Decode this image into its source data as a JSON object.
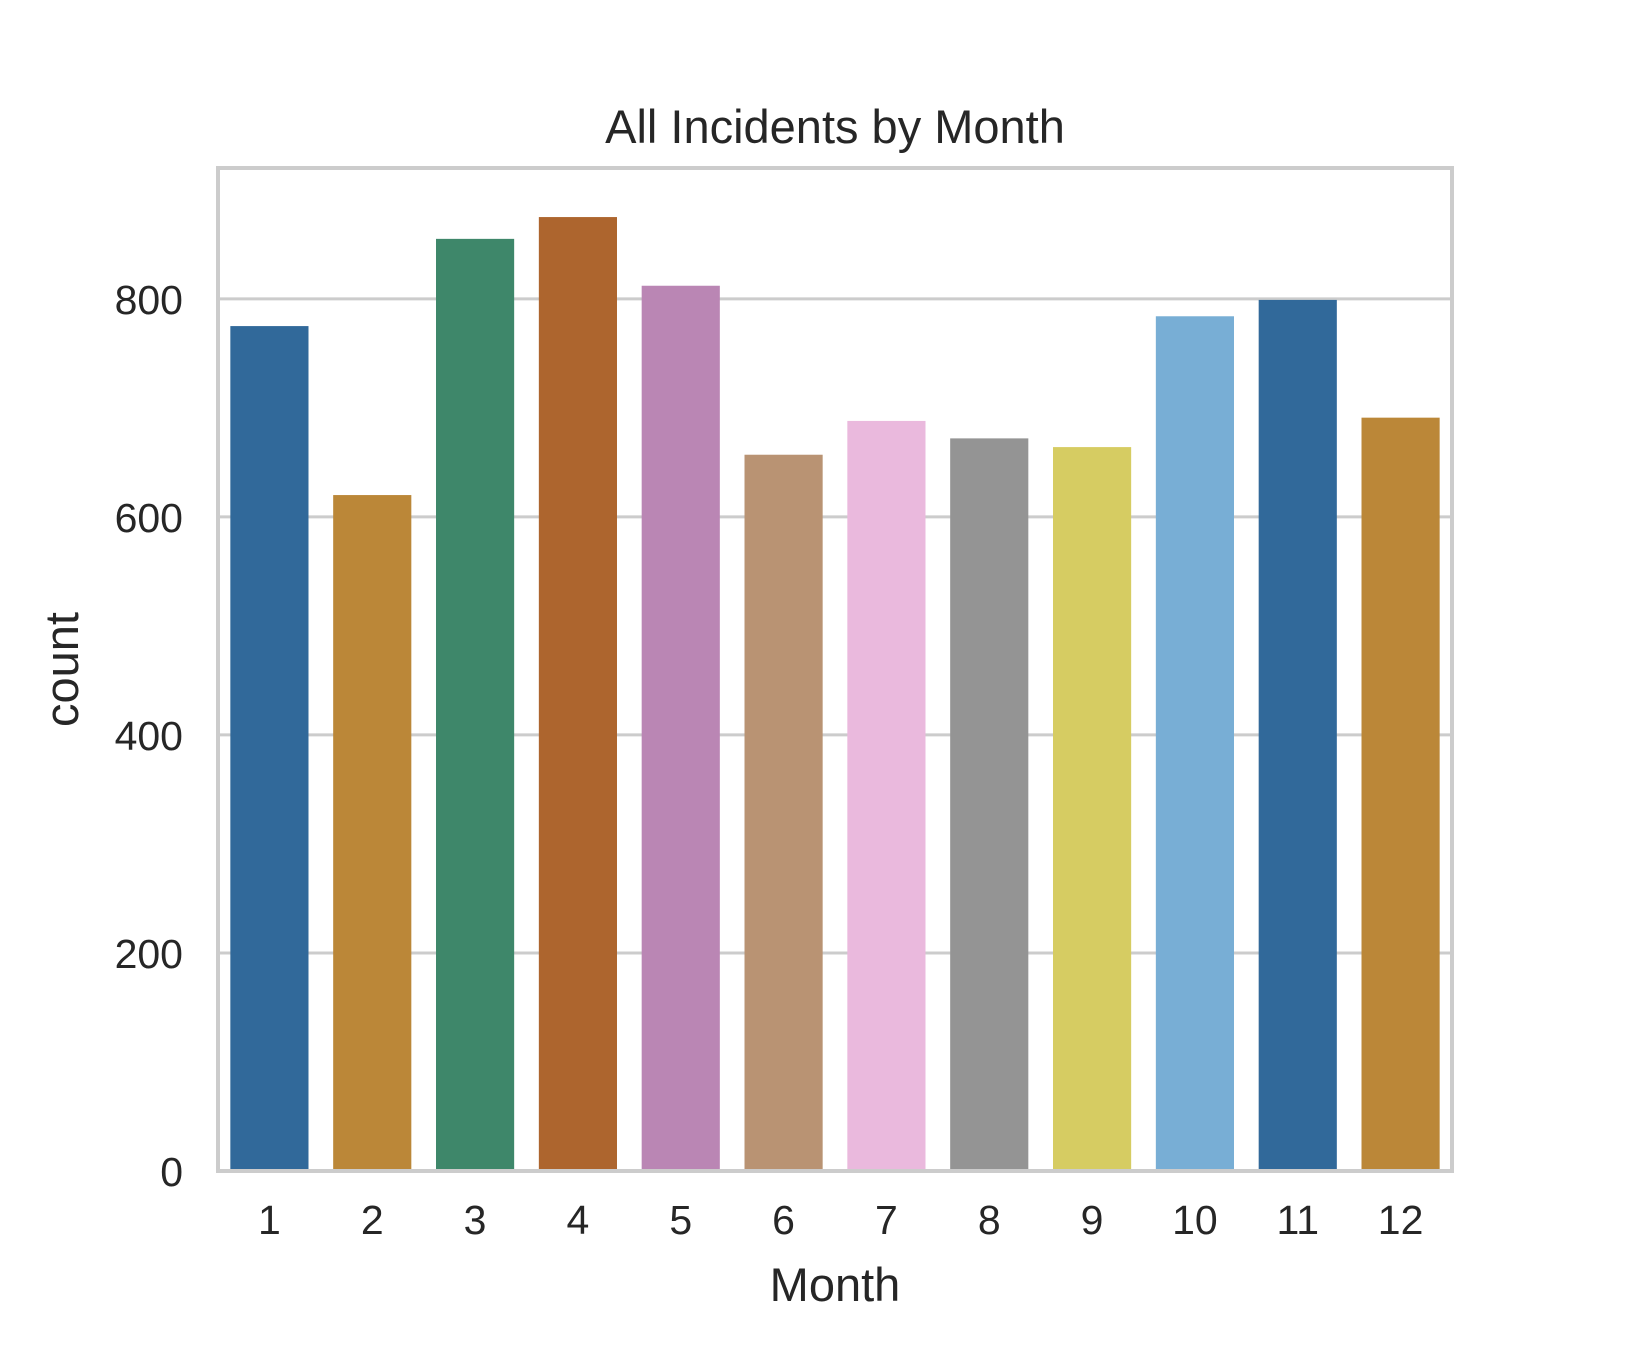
{
  "chart_data": {
    "type": "bar",
    "title": "All Incidents by Month",
    "xlabel": "Month",
    "ylabel": "count",
    "categories": [
      "1",
      "2",
      "3",
      "4",
      "5",
      "6",
      "7",
      "8",
      "9",
      "10",
      "11",
      "12"
    ],
    "values": [
      775,
      620,
      855,
      875,
      812,
      657,
      688,
      672,
      664,
      784,
      799,
      691
    ],
    "colors": [
      "#31699a",
      "#bb8738",
      "#3e876a",
      "#ad652e",
      "#ba86b4",
      "#b99373",
      "#eab9dd",
      "#949494",
      "#d6cc62",
      "#78aed5",
      "#31699a",
      "#bb8738"
    ],
    "yticks": [
      0,
      200,
      400,
      600,
      800
    ],
    "ylim": [
      0,
      920
    ],
    "grid": true
  }
}
